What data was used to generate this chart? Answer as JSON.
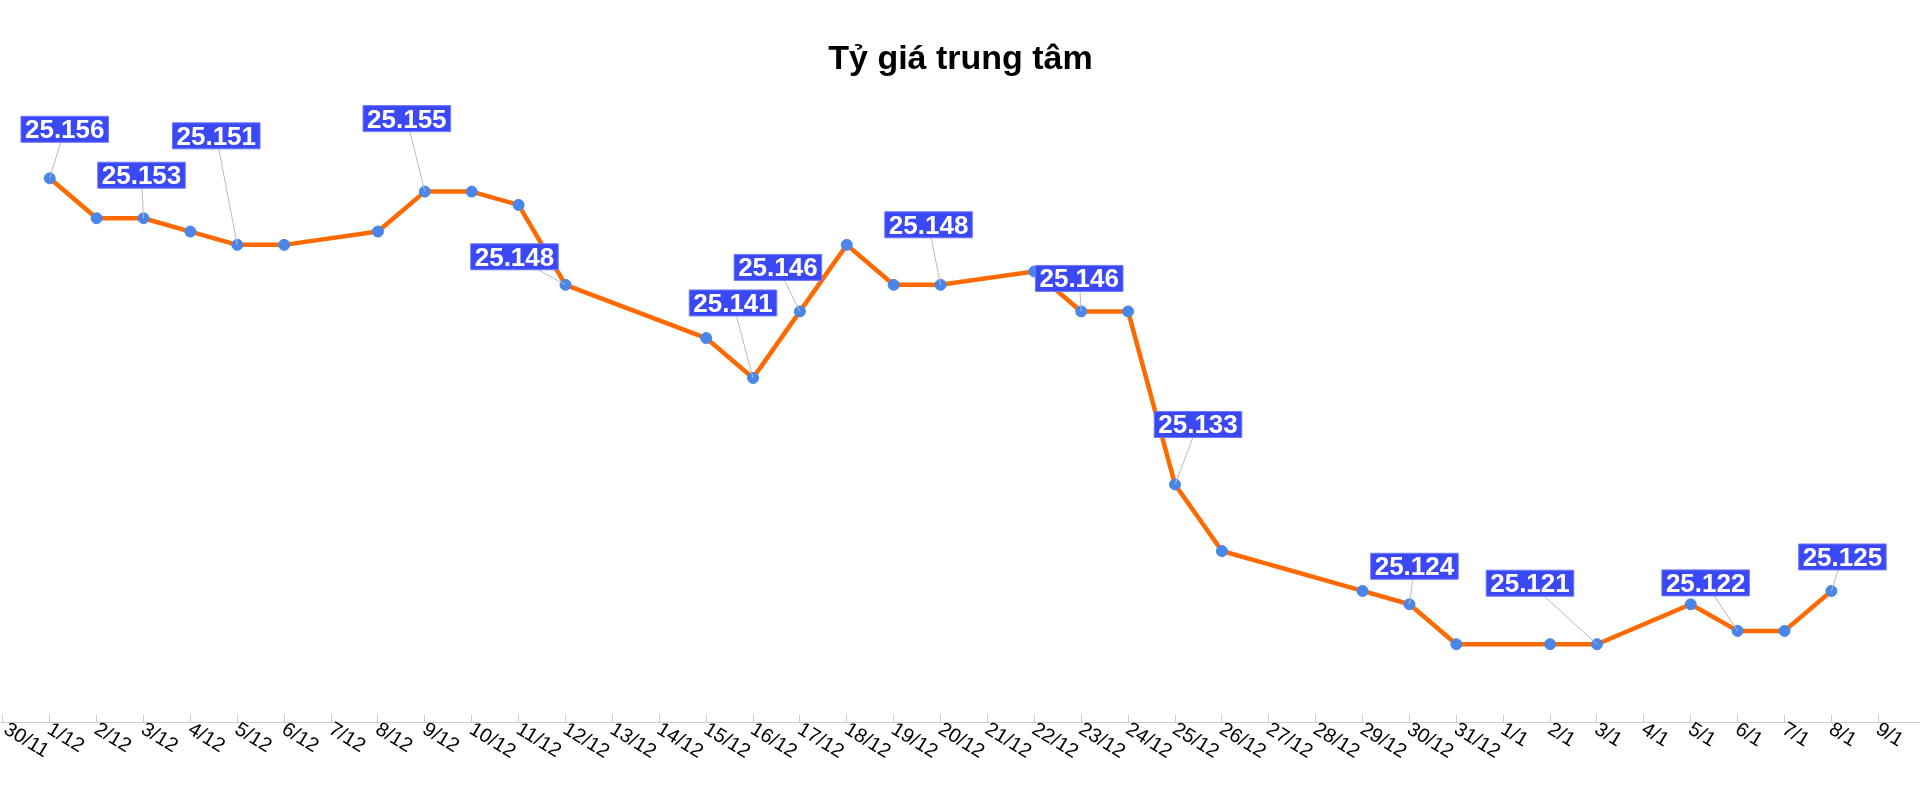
{
  "chart_data": {
    "type": "line",
    "title": "Tỷ giá trung tâm",
    "categories": [
      "30/11",
      "1/12",
      "2/12",
      "3/12",
      "4/12",
      "5/12",
      "6/12",
      "7/12",
      "8/12",
      "9/12",
      "10/12",
      "11/12",
      "12/12",
      "13/12",
      "14/12",
      "15/12",
      "16/12",
      "17/12",
      "18/12",
      "19/12",
      "20/12",
      "21/12",
      "22/12",
      "23/12",
      "24/12",
      "25/12",
      "26/12",
      "27/12",
      "28/12",
      "29/12",
      "30/12",
      "31/12",
      "1/1",
      "2/1",
      "3/1",
      "4/1",
      "5/1",
      "6/1",
      "7/1",
      "8/1",
      "9/1"
    ],
    "series": [
      {
        "color": "#ff6a00",
        "colors": [
          "#4a86e8",
          "#4a86e8",
          "#4a86e8",
          "#4a86e8",
          "#4a86e8",
          "#4a86e8",
          "#4a86e8",
          "#4a86e8",
          "#4a86e8",
          "#4a86e8",
          "#4a86e8",
          "#4a86e8",
          "#4a86e8",
          "#4a86e8",
          "#4a86e8",
          "#4a86e8",
          "#4a86e8",
          "#4a86e8",
          "#4a86e8",
          "#4a86e8",
          "#4a86e8",
          "#4a86e8",
          "#4a86e8",
          "#4a86e8",
          "#4a86e8",
          "#4a86e8",
          "#4a86e8",
          "#4a86e8",
          "#4a86e8",
          "#4a86e8",
          "#4a86e8",
          "#4a86e8",
          "#4a86e8",
          "#4a86e8",
          "#4a86e8",
          "#4a86e8",
          "#4a86e8",
          "#4a86e8",
          "#4a86e8",
          "#4a86e8",
          "#4a86e8"
        ],
        "values": [
          null,
          25.156,
          25.153,
          25.153,
          25.152,
          25.151,
          25.151,
          null,
          25.152,
          25.155,
          25.155,
          25.154,
          25.148,
          null,
          null,
          25.144,
          25.141,
          25.146,
          25.151,
          25.148,
          25.148,
          null,
          25.149,
          25.146,
          25.146,
          25.133,
          25.128,
          null,
          null,
          25.125,
          25.124,
          25.121,
          null,
          25.121,
          25.121,
          null,
          25.124,
          25.122,
          25.122,
          25.125,
          null
        ],
        "value_labels": [
          null,
          "25.156",
          null,
          "25.153",
          null,
          "25.151",
          null,
          null,
          null,
          "25.155",
          null,
          null,
          "25.148",
          null,
          null,
          null,
          "25.141",
          "25.146",
          null,
          null,
          "25.148",
          null,
          null,
          "25.146",
          null,
          "25.133",
          null,
          null,
          null,
          null,
          "25.124",
          null,
          null,
          null,
          "25.121",
          null,
          null,
          "25.122",
          null,
          "25.125",
          null
        ]
      }
    ],
    "marker": "circle",
    "line_style": "solid",
    "grid": false,
    "tick_labels": "x"
  }
}
